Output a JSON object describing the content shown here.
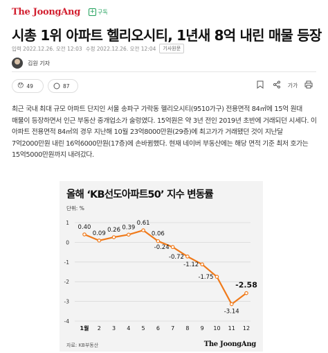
{
  "header": {
    "logo": "The JoongAng",
    "subscribe_label": "구독",
    "subscribe_plus": "+"
  },
  "article": {
    "headline": "시총 1위 아파트 헬리오시티, 1년새 8억 내린 매물 등장",
    "meta_input": "입력 2022.12.26. 오전 12:03",
    "meta_edit": "수정 2022.12.26. 오전 12:04",
    "meta_badge": "기사원문",
    "author": "김원 기자",
    "reaction_count": "49",
    "comment_count": "87",
    "body": "최근 국내 최대 규모 아파트 단지인 서울 송파구 가락동 헬리오시티(9510가구) 전용면적 84㎡에 15억 원대 매물이 등장하면서 인근 부동산 중개업소가 술렁였다. 15억원은 약 3년 전인 2019년 초반에 거래되던 시세다. 이 아파트 전용면적 84㎡의 경우 지난해 10월 23억8000만원(29층)에 최고가가 거래됐던 것이 지난달 7억2000만원 내린 16억6000만원(17층)에 손바뀜했다. 현재 네이버 부동산에는 해당 면적 기준 최저 호가는 15억5000만원까지 내려갔다."
  },
  "icons": {
    "reaction": "emoji-reaction-icon",
    "comment": "comment-icon",
    "bookmark": "bookmark-icon",
    "share": "share-icon",
    "font": "font-size-icon",
    "print": "print-icon",
    "upload": "upload-icon"
  },
  "tools_text": {
    "font": "가가"
  },
  "colors": {
    "brand_red": "#d21f2f",
    "subscribe_green": "#1c9f58",
    "line_orange": "#f07a1a",
    "marker_orange": "#f07a1a"
  },
  "chart_data": {
    "type": "line",
    "title": "올해 ‘KB선도아파트50’ 지수 변동률",
    "unit_label": "단위: %",
    "categories": [
      "1월",
      "2",
      "3",
      "4",
      "5",
      "6",
      "7",
      "8",
      "9",
      "10",
      "11",
      "12"
    ],
    "values": [
      0.4,
      0.09,
      0.26,
      0.39,
      0.61,
      0.06,
      -0.24,
      -0.72,
      -1.12,
      -1.75,
      -3.14,
      -2.58
    ],
    "data_labels": [
      "0.40",
      "0.09",
      "0.26",
      "0.39",
      "0.61",
      "0.06",
      "-0.24",
      "-0.72",
      "-1.12",
      "-1.75",
      "-3.14",
      "-2.58"
    ],
    "y_ticks": [
      "1",
      "0",
      "-1",
      "-2",
      "-3",
      "-4"
    ],
    "y_tick_values": [
      1,
      0,
      -1,
      -2,
      -3,
      -4
    ],
    "ylim": [
      -4,
      1
    ],
    "grid": true,
    "source": "자료: KB부동산",
    "brand": "The JoongAng"
  }
}
